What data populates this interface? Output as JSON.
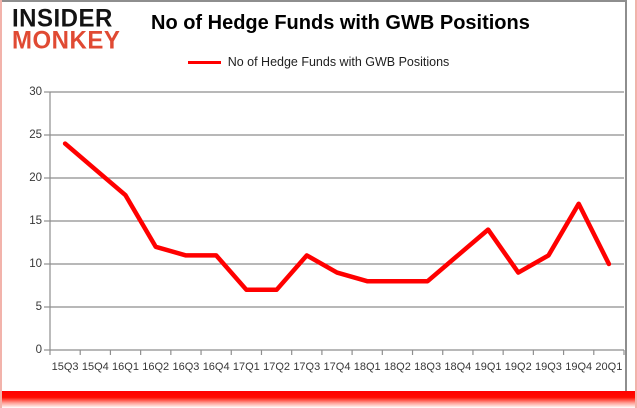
{
  "header": {
    "logo_line1": "INSIDER",
    "logo_line2": "MONKEY",
    "title": "No of Hedge Funds with GWB Positions",
    "legend_label": "No of Hedge Funds with GWB Positions"
  },
  "colors": {
    "line": "#ff0000",
    "grid": "#8e8e8e",
    "axis_text": "#383838",
    "logo_black": "#131313",
    "logo_red": "#e04a33",
    "border_bottom": "#ff0000"
  },
  "chart_data": {
    "type": "line",
    "title": "No of Hedge Funds with GWB Positions",
    "categories": [
      "15Q3",
      "15Q4",
      "16Q1",
      "16Q2",
      "16Q3",
      "16Q4",
      "17Q1",
      "17Q2",
      "17Q3",
      "17Q4",
      "18Q1",
      "18Q2",
      "18Q3",
      "18Q4",
      "19Q1",
      "19Q2",
      "19Q3",
      "19Q4",
      "20Q1"
    ],
    "series": [
      {
        "name": "No of Hedge Funds with GWB Positions",
        "values": [
          24,
          21,
          18,
          12,
          11,
          11,
          7,
          7,
          11,
          9,
          8,
          8,
          8,
          11,
          14,
          9,
          11,
          17,
          10
        ]
      }
    ],
    "xlabel": "",
    "ylabel": "",
    "ylim": [
      0,
      30
    ],
    "yticks": [
      0,
      5,
      10,
      15,
      20,
      25,
      30
    ],
    "grid": true,
    "legend_position": "top-center"
  }
}
